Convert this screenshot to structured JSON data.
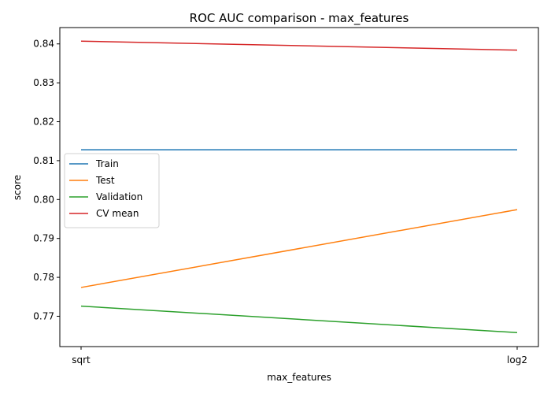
{
  "chart_data": {
    "type": "line",
    "title": "ROC AUC comparison - max_features",
    "xlabel": "max_features",
    "ylabel": "score",
    "categories": [
      "sqrt",
      "log2"
    ],
    "ylim": [
      0.7622,
      0.8442
    ],
    "yticks": [
      0.77,
      0.78,
      0.79,
      0.8,
      0.81,
      0.82,
      0.83,
      0.84
    ],
    "ytick_labels": [
      "0.77",
      "0.78",
      "0.79",
      "0.80",
      "0.81",
      "0.82",
      "0.83",
      "0.84"
    ],
    "grid": false,
    "legend_position": "center-left",
    "series": [
      {
        "name": "Train",
        "color": "#1f77b4",
        "values": [
          0.8128,
          0.8128
        ]
      },
      {
        "name": "Test",
        "color": "#ff7f0e",
        "values": [
          0.7774,
          0.7974
        ]
      },
      {
        "name": "Validation",
        "color": "#2ca02c",
        "values": [
          0.7726,
          0.7658
        ]
      },
      {
        "name": "CV mean",
        "color": "#d62728",
        "values": [
          0.8407,
          0.8384
        ]
      }
    ]
  }
}
